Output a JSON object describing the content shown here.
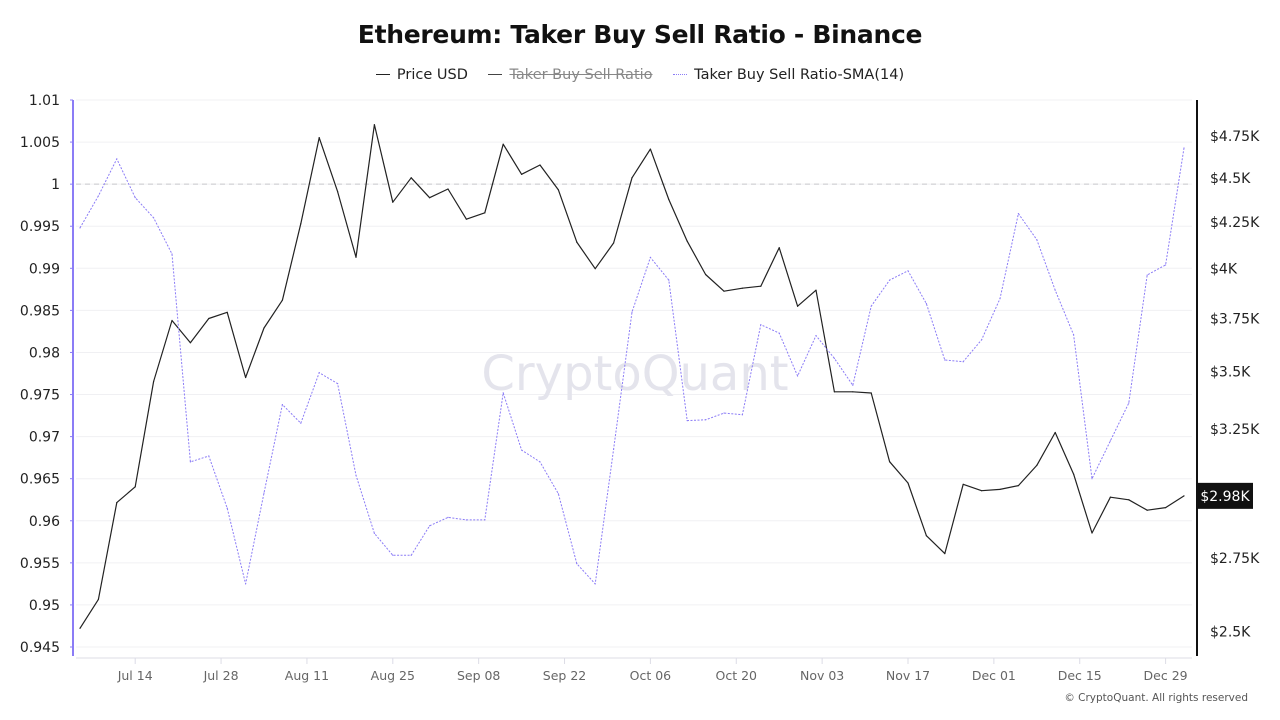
{
  "chart_data": {
    "type": "line",
    "title": "Ethereum: Taker Buy Sell Ratio - Binance",
    "legend": [
      {
        "name": "Price USD",
        "color": "#222222",
        "style": "solid",
        "hidden": false
      },
      {
        "name": "Taker Buy Sell Ratio",
        "color": "#444444",
        "style": "solid",
        "hidden": true
      },
      {
        "name": "Taker Buy Sell Ratio-SMA(14)",
        "color": "#8b7cf6",
        "style": "dotted",
        "hidden": false
      }
    ],
    "legend_position": "top",
    "x": [
      "Jul 05",
      "Jul 08",
      "Jul 11",
      "Jul 14",
      "Jul 17",
      "Jul 20",
      "Jul 23",
      "Jul 26",
      "Jul 29",
      "Aug 01",
      "Aug 04",
      "Aug 07",
      "Aug 10",
      "Aug 13",
      "Aug 16",
      "Aug 19",
      "Aug 22",
      "Aug 25",
      "Aug 28",
      "Aug 31",
      "Sep 03",
      "Sep 06",
      "Sep 09",
      "Sep 12",
      "Sep 15",
      "Sep 18",
      "Sep 21",
      "Sep 24",
      "Sep 27",
      "Sep 30",
      "Oct 03",
      "Oct 06",
      "Oct 09",
      "Oct 12",
      "Oct 15",
      "Oct 18",
      "Oct 21",
      "Oct 24",
      "Oct 27",
      "Oct 30",
      "Nov 02",
      "Nov 05",
      "Nov 08",
      "Nov 11",
      "Nov 14",
      "Nov 17",
      "Nov 20",
      "Nov 23",
      "Nov 26",
      "Nov 29",
      "Dec 02",
      "Dec 05",
      "Dec 08",
      "Dec 11",
      "Dec 14",
      "Dec 17",
      "Dec 20",
      "Dec 23",
      "Dec 26",
      "Dec 29",
      "Jan 01"
    ],
    "x_ticks": [
      "Jul 14",
      "Jul 28",
      "Aug 11",
      "Aug 25",
      "Sep 08",
      "Sep 22",
      "Oct 06",
      "Oct 20",
      "Nov 03",
      "Nov 17",
      "Dec 01",
      "Dec 15",
      "Dec 29"
    ],
    "series": [
      {
        "name": "Price USD",
        "axis": "right",
        "color": "#222222",
        "values": [
          2510,
          2606,
          2954,
          3015,
          3456,
          3740,
          3634,
          3750,
          3780,
          3474,
          3704,
          3840,
          4240,
          4740,
          4420,
          4060,
          4820,
          4360,
          4500,
          4385,
          4435,
          4265,
          4300,
          4700,
          4520,
          4575,
          4430,
          4140,
          4000,
          4135,
          4500,
          4670,
          4375,
          4145,
          3970,
          3885,
          3900,
          3910,
          4110,
          3810,
          3890,
          3410,
          3410,
          3405,
          3115,
          3030,
          2830,
          2765,
          3025,
          3000,
          3005,
          3020,
          3100,
          3235,
          3065,
          2840,
          2975,
          2965,
          2925,
          2935,
          2980
        ]
      },
      {
        "name": "Taker Buy Sell Ratio-SMA(14)",
        "axis": "left",
        "color": "#8b7cf6",
        "values": [
          0.9948,
          0.9986,
          1.003,
          0.9984,
          0.996,
          0.9917,
          0.967,
          0.9677,
          0.9615,
          0.9525,
          0.9633,
          0.9738,
          0.9716,
          0.9776,
          0.9763,
          0.9654,
          0.9585,
          0.9559,
          0.9559,
          0.9594,
          0.9604,
          0.9601,
          0.9601,
          0.9752,
          0.9684,
          0.967,
          0.9632,
          0.9549,
          0.9525,
          0.9685,
          0.9848,
          0.9913,
          0.9886,
          0.9719,
          0.972,
          0.9728,
          0.9726,
          0.9833,
          0.9823,
          0.9772,
          0.982,
          0.9793,
          0.9761,
          0.9855,
          0.9886,
          0.9897,
          0.9858,
          0.9791,
          0.9789,
          0.9815,
          0.9864,
          0.9965,
          0.9934,
          0.9874,
          0.9821,
          0.965,
          0.9695,
          0.974,
          0.9892,
          0.9904,
          1.0043
        ]
      }
    ],
    "left_axis": {
      "ticks": [
        "1.01",
        "1.005",
        "1",
        "0.995",
        "0.99",
        "0.985",
        "0.98",
        "0.975",
        "0.97",
        "0.965",
        "0.96",
        "0.955",
        "0.95",
        "0.945"
      ],
      "ylim": [
        0.945,
        1.01
      ],
      "reference_line": 1,
      "axis_color": "#8b7cf6"
    },
    "right_axis": {
      "scale": "log",
      "ticks": [
        {
          "v": 4750,
          "label": "$4.75K"
        },
        {
          "v": 4500,
          "label": "$4.5K"
        },
        {
          "v": 4250,
          "label": "$4.25K"
        },
        {
          "v": 4000,
          "label": "$4K"
        },
        {
          "v": 3750,
          "label": "$3.75K"
        },
        {
          "v": 3500,
          "label": "$3.5K"
        },
        {
          "v": 3250,
          "label": "$3.25K"
        },
        {
          "v": 2750,
          "label": "$2.75K"
        },
        {
          "v": 2500,
          "label": "$2.5K"
        }
      ],
      "ylim": [
        2450,
        4977
      ],
      "current_label": "$2.98K",
      "current_value": 2980
    },
    "grid": true
  },
  "watermark": "CryptoQuant",
  "copyright": "© CryptoQuant. All rights reserved"
}
